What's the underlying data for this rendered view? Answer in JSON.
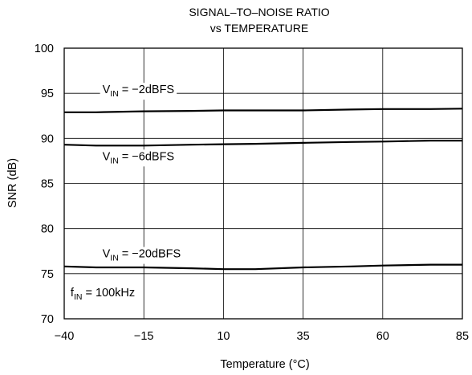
{
  "chart_data": {
    "type": "line",
    "title_line1": "SIGNAL–TO–NOISE RATIO",
    "title_line2": "vs TEMPERATURE",
    "xlabel": "Temperature (°C)",
    "ylabel": "SNR (dB)",
    "xlim": [
      -40,
      85
    ],
    "ylim": [
      70,
      100
    ],
    "xticks": [
      -40,
      -15,
      10,
      35,
      60,
      85
    ],
    "xtick_labels": [
      "−40",
      "−15",
      "10",
      "35",
      "60",
      "85"
    ],
    "yticks": [
      70,
      75,
      80,
      85,
      90,
      95,
      100
    ],
    "ytick_labels": [
      "70",
      "75",
      "80",
      "85",
      "90",
      "95",
      "100"
    ],
    "grid": true,
    "series": [
      {
        "name": "V_IN = −2dBFS",
        "x": [
          -40,
          -30,
          -15,
          0,
          10,
          20,
          35,
          50,
          60,
          75,
          85
        ],
        "y": [
          92.9,
          92.9,
          93.0,
          93.05,
          93.1,
          93.1,
          93.1,
          93.2,
          93.25,
          93.25,
          93.3
        ]
      },
      {
        "name": "V_IN = −6dBFS",
        "x": [
          -40,
          -30,
          -15,
          0,
          10,
          20,
          35,
          50,
          60,
          75,
          85
        ],
        "y": [
          89.3,
          89.2,
          89.2,
          89.3,
          89.35,
          89.4,
          89.5,
          89.6,
          89.65,
          89.75,
          89.75
        ]
      },
      {
        "name": "V_IN = −20dBFS",
        "x": [
          -40,
          -30,
          -15,
          0,
          10,
          20,
          35,
          50,
          60,
          75,
          85
        ],
        "y": [
          75.8,
          75.7,
          75.7,
          75.6,
          75.5,
          75.5,
          75.7,
          75.8,
          75.9,
          76.0,
          76.0
        ]
      }
    ],
    "annotations": [
      {
        "id": "vin-2",
        "main": "V",
        "sub": "IN",
        "rest": " = −2dBFS",
        "x": -28,
        "y": 95.0
      },
      {
        "id": "vin-6",
        "main": "V",
        "sub": "IN",
        "rest": " = −6dBFS",
        "x": -28,
        "y": 87.6
      },
      {
        "id": "vin-20",
        "main": "V",
        "sub": "IN",
        "rest": " = −20dBFS",
        "x": -28,
        "y": 76.8
      },
      {
        "id": "fin",
        "main": "f",
        "sub": "IN",
        "rest": " = 100kHz",
        "x": -38,
        "y": 72.5
      }
    ]
  }
}
